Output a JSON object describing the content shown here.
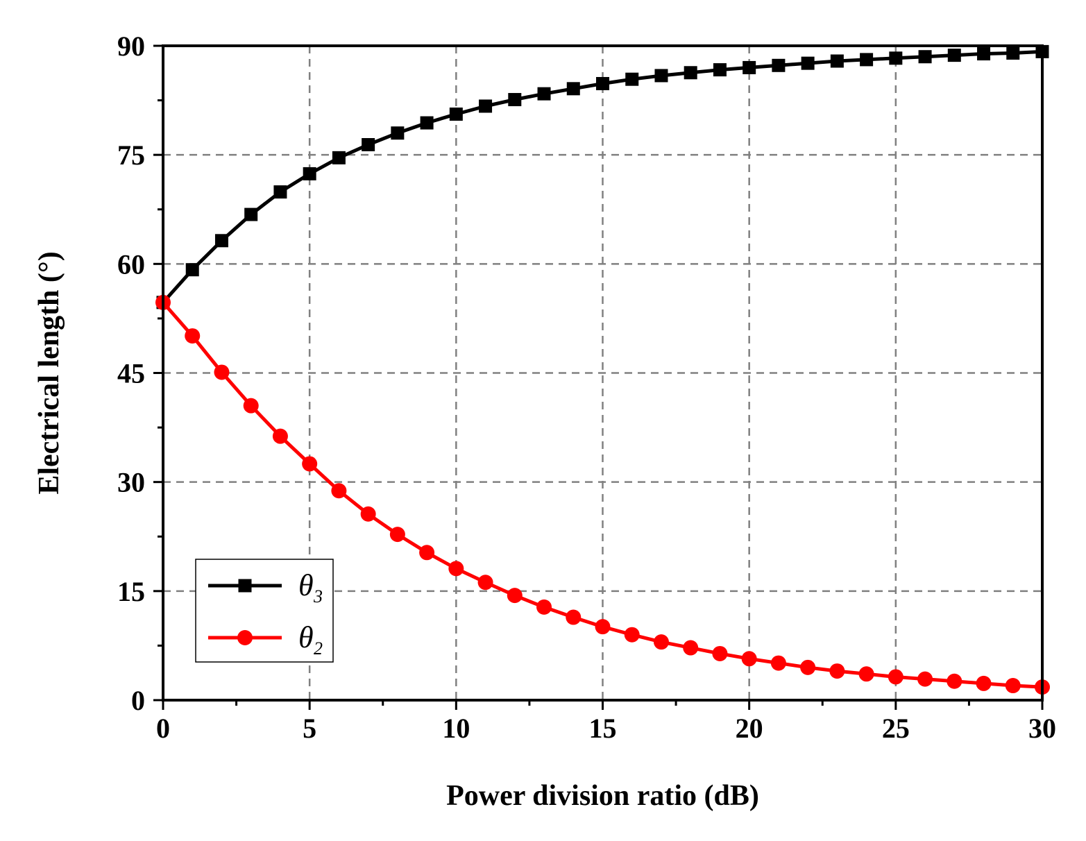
{
  "chart_data": {
    "type": "line",
    "title": "",
    "xlabel": "Power division ratio (dB)",
    "ylabel": "Electrical length (°)",
    "xlim": [
      0,
      30
    ],
    "ylim": [
      0,
      90
    ],
    "xticks": [
      0,
      5,
      10,
      15,
      20,
      25,
      30
    ],
    "xtick_labels": [
      "0",
      "5",
      "10",
      "15",
      "20",
      "25",
      "30"
    ],
    "yticks": [
      0,
      15,
      30,
      45,
      60,
      75,
      90
    ],
    "ytick_labels": [
      "0",
      "15",
      "30",
      "45",
      "60",
      "75",
      "90"
    ],
    "grid": true,
    "legend_position": "lower-left",
    "x": [
      0,
      1,
      2,
      3,
      4,
      5,
      6,
      7,
      8,
      9,
      10,
      11,
      12,
      13,
      14,
      15,
      16,
      17,
      18,
      19,
      20,
      21,
      22,
      23,
      24,
      25,
      26,
      27,
      28,
      29,
      30
    ],
    "series": [
      {
        "name": "θ",
        "subscript": "3",
        "color": "#000000",
        "marker": "square",
        "values": [
          54.7,
          59.2,
          63.2,
          66.8,
          69.9,
          72.4,
          74.6,
          76.4,
          78.0,
          79.4,
          80.6,
          81.7,
          82.6,
          83.4,
          84.1,
          84.8,
          85.4,
          85.9,
          86.3,
          86.7,
          87.0,
          87.3,
          87.6,
          87.9,
          88.1,
          88.3,
          88.5,
          88.7,
          88.9,
          89.0,
          89.2
        ]
      },
      {
        "name": "θ",
        "subscript": "2",
        "color": "#ff0000",
        "marker": "circle",
        "values": [
          54.7,
          50.1,
          45.1,
          40.5,
          36.3,
          32.5,
          28.8,
          25.6,
          22.8,
          20.3,
          18.1,
          16.2,
          14.4,
          12.8,
          11.4,
          10.1,
          9.0,
          8.0,
          7.2,
          6.4,
          5.7,
          5.1,
          4.5,
          4.0,
          3.6,
          3.2,
          2.9,
          2.6,
          2.3,
          2.0,
          1.8
        ]
      }
    ]
  }
}
